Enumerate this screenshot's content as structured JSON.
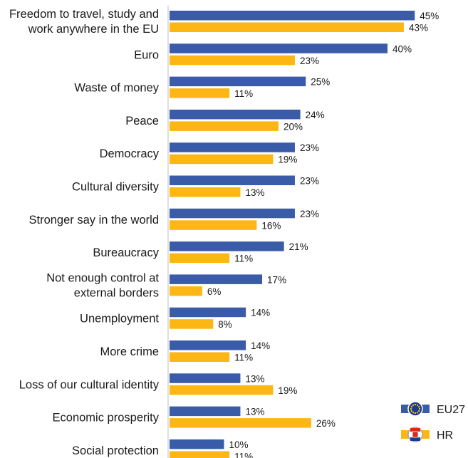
{
  "chart_data": {
    "type": "bar",
    "orientation": "horizontal",
    "categories": [
      [
        "Freedom to travel, study and",
        "work anywhere in the EU"
      ],
      [
        "Euro"
      ],
      [
        "Waste of money"
      ],
      [
        "Peace"
      ],
      [
        "Democracy"
      ],
      [
        "Cultural diversity"
      ],
      [
        "Stronger say in the world"
      ],
      [
        "Bureaucracy"
      ],
      [
        "Not enough control at",
        "external borders"
      ],
      [
        "Unemployment"
      ],
      [
        "More crime"
      ],
      [
        "Loss of our cultural identity"
      ],
      [
        "Economic prosperity"
      ],
      [
        "Social protection"
      ]
    ],
    "series": [
      {
        "name": "EU27",
        "color": "#3a5ba8",
        "values": [
          45,
          40,
          25,
          24,
          23,
          23,
          23,
          21,
          17,
          14,
          14,
          13,
          13,
          10
        ]
      },
      {
        "name": "HR",
        "color": "#fdb714",
        "values": [
          43,
          23,
          11,
          20,
          19,
          13,
          16,
          11,
          6,
          8,
          11,
          19,
          26,
          11
        ]
      }
    ],
    "value_suffix": "%",
    "xlim": [
      0,
      50
    ],
    "grid": false,
    "legend": {
      "position": "bottom-right",
      "icons": [
        "eu-flag-icon",
        "croatia-flag-icon"
      ]
    }
  }
}
